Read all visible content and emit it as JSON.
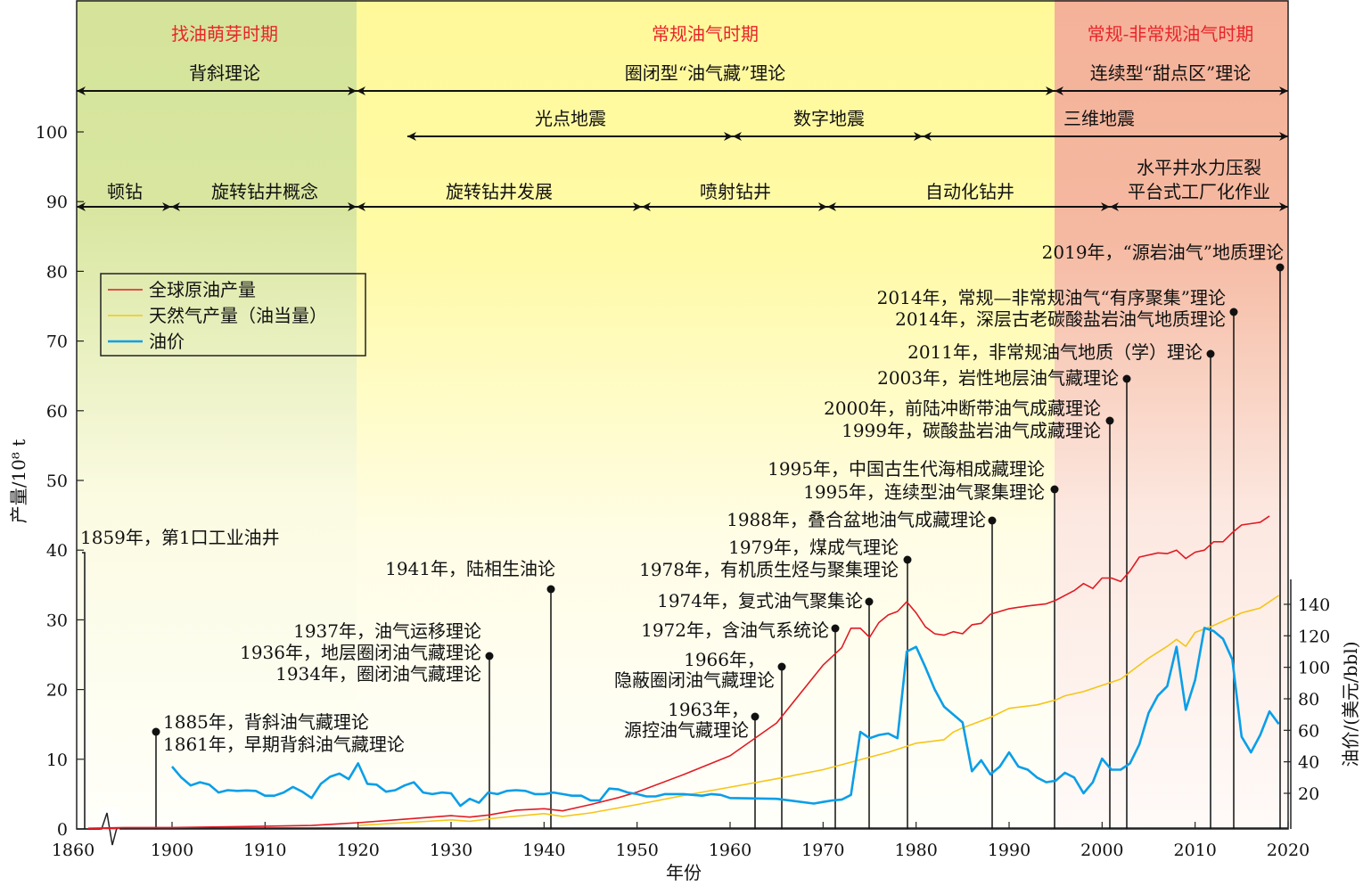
{
  "chart_data": {
    "type": "line",
    "xlabel": "年份",
    "ylabel": "产量/10⁸ t",
    "y2label": "油价/(美元/bbl)",
    "xlim": [
      1860,
      2020
    ],
    "ylim": [
      0,
      100
    ],
    "y2lim": [
      20,
      140
    ],
    "axis_break": "1860–1900",
    "x_ticks": [
      1860,
      1900,
      1910,
      1920,
      1930,
      1940,
      1950,
      1960,
      1970,
      1980,
      1990,
      2000,
      2010,
      2020
    ],
    "y_ticks": [
      0,
      10,
      20,
      30,
      40,
      50,
      60,
      70,
      80,
      90,
      100
    ],
    "y2_ticks": [
      20,
      40,
      60,
      80,
      100,
      120,
      140
    ],
    "legend_position": "top-left",
    "series": [
      {
        "name": "全球原油产量",
        "color": "#e01b24",
        "axis": "left",
        "x": [
          1865,
          1880,
          1900,
          1910,
          1915,
          1920,
          1925,
          1930,
          1932,
          1934,
          1937,
          1940,
          1942,
          1945,
          1948,
          1950,
          1955,
          1960,
          1965,
          1970,
          1972,
          1973,
          1974,
          1975,
          1976,
          1977,
          1978,
          1979,
          1980,
          1981,
          1982,
          1983,
          1984,
          1985,
          1986,
          1987,
          1988,
          1990,
          1992,
          1994,
          1995,
          1997,
          1998,
          1999,
          2000,
          2001,
          2002,
          2003,
          2004,
          2006,
          2007,
          2008,
          2009,
          2010,
          2011,
          2012,
          2013,
          2014,
          2015,
          2017,
          2018
        ],
        "y": [
          0.1,
          0.2,
          0.2,
          0.4,
          0.5,
          0.9,
          1.4,
          1.9,
          1.7,
          2.0,
          2.7,
          2.9,
          2.6,
          3.5,
          4.5,
          5.3,
          7.8,
          10.5,
          15.2,
          23.5,
          26,
          28.8,
          28.8,
          27.5,
          29.6,
          30.7,
          31.2,
          32.6,
          31,
          29,
          28,
          27.8,
          28.3,
          28,
          29.3,
          29.5,
          30.8,
          31.6,
          32,
          32.3,
          32.8,
          34.2,
          35.2,
          34.5,
          36,
          36,
          35.5,
          37,
          39,
          39.6,
          39.5,
          40,
          38.8,
          39.7,
          40,
          41.2,
          41.2,
          42.5,
          43.6,
          44,
          44.9
        ]
      },
      {
        "name": "天然气产量（油当量）",
        "color": "#f5c518",
        "axis": "left",
        "x": [
          1920,
          1925,
          1930,
          1932,
          1935,
          1940,
          1942,
          1945,
          1950,
          1955,
          1960,
          1965,
          1970,
          1975,
          1977,
          1980,
          1983,
          1984,
          1985,
          1988,
          1990,
          1993,
          1995,
          1996,
          1998,
          2000,
          2002,
          2005,
          2007,
          2008,
          2009,
          2010,
          2012,
          2015,
          2017,
          2019
        ],
        "y": [
          0.5,
          0.9,
          1.3,
          1.1,
          1.6,
          2.2,
          1.8,
          2.3,
          3.5,
          4.8,
          6,
          7.2,
          8.5,
          10.3,
          11,
          12.3,
          12.8,
          13.9,
          14.5,
          16,
          17.3,
          17.8,
          18.5,
          19.1,
          19.7,
          20.6,
          21.5,
          24.5,
          26.2,
          27.2,
          26.2,
          28.2,
          29.2,
          31,
          31.7,
          33.5
        ]
      },
      {
        "name": "油价",
        "color": "#0a9ee8",
        "axis": "right",
        "x": [
          1900,
          1901,
          1902,
          1903,
          1904,
          1905,
          1906,
          1907,
          1908,
          1909,
          1910,
          1911,
          1912,
          1913,
          1914,
          1915,
          1916,
          1917,
          1918,
          1919,
          1920,
          1921,
          1922,
          1923,
          1924,
          1925,
          1926,
          1927,
          1928,
          1929,
          1930,
          1931,
          1932,
          1933,
          1934,
          1935,
          1936,
          1937,
          1938,
          1939,
          1940,
          1941,
          1942,
          1943,
          1944,
          1945,
          1946,
          1947,
          1948,
          1949,
          1950,
          1951,
          1952,
          1953,
          1955,
          1957,
          1958,
          1959,
          1960,
          1965,
          1969,
          1970,
          1971,
          1972,
          1973,
          1974,
          1975,
          1976,
          1977,
          1978,
          1979,
          1980,
          1981,
          1982,
          1983,
          1984,
          1985,
          1986,
          1987,
          1988,
          1989,
          1990,
          1991,
          1992,
          1993,
          1994,
          1995,
          1996,
          1997,
          1998,
          1999,
          2000,
          2001,
          2002,
          2003,
          2004,
          2005,
          2006,
          2007,
          2008,
          2009,
          2010,
          2011,
          2012,
          2013,
          2014,
          2015,
          2016,
          2017,
          2018,
          2019
        ],
        "y": [
          37,
          30,
          25,
          27,
          25.5,
          20.5,
          22,
          21.5,
          21.8,
          21.5,
          18.5,
          18.5,
          20.5,
          24,
          21,
          17,
          26,
          30.5,
          32.5,
          29,
          39,
          26,
          25.5,
          21,
          22,
          25,
          27,
          20.5,
          19.5,
          20.5,
          20,
          12,
          16.5,
          14,
          20.5,
          19.5,
          21.5,
          22,
          21.5,
          19.5,
          19.5,
          20.5,
          19.5,
          18.5,
          18.5,
          15.5,
          15.5,
          23,
          22.5,
          20.5,
          19.5,
          18,
          18,
          19.5,
          19.5,
          18.5,
          19.5,
          19,
          17,
          16.5,
          13.5,
          14.5,
          15.5,
          16,
          19,
          59,
          55,
          57,
          58,
          55,
          110,
          113,
          100,
          86,
          75,
          70,
          65,
          34,
          41,
          32,
          37,
          46,
          37,
          35,
          30,
          27,
          28,
          33,
          30,
          20,
          27,
          42,
          35,
          35,
          39,
          51,
          71,
          82,
          88,
          113,
          73,
          92,
          125,
          123,
          118,
          105,
          56,
          46,
          57,
          72,
          64
        ]
      }
    ],
    "periods": [
      {
        "label": "找油萌芽时期",
        "color": "#d5e49a"
      },
      {
        "label": "常规油气时期",
        "color": "#fff99a"
      },
      {
        "label": "常规-非常规油气时期",
        "color": "#f4b299"
      }
    ],
    "theory_row": [
      "背斜理论",
      "圈闭型“油气藏”理论",
      "连续型“甜点区”理论"
    ],
    "seismic_row": [
      "光点地震",
      "数字地震",
      "三维地震"
    ],
    "drilling_row": [
      "顿钻",
      "旋转钻井概念",
      "旋转钻井发展",
      "喷射钻井",
      "自动化钻井",
      "水平井水力压裂",
      "平台式工厂化作业"
    ],
    "annotations": [
      [
        "1859年，第1口工业油井"
      ],
      [
        "1885年，背斜油气藏理论",
        "1861年，早期背斜油气藏理论"
      ],
      [
        "1937年，油气运移理论",
        "1936年，地层圈闭油气藏理论",
        "1934年，圈闭油气藏理论"
      ],
      [
        "1941年，陆相生油论"
      ],
      [
        "1963年，",
        "源控油气藏理论"
      ],
      [
        "1966年，",
        "隐蔽圈闭油气藏理论"
      ],
      [
        "1972年，含油气系统论"
      ],
      [
        "1974年，复式油气聚集论"
      ],
      [
        "1979年，煤成气理论",
        "1978年，有机质生烃与聚集理论"
      ],
      [
        "1988年，叠合盆地油气成藏理论"
      ],
      [
        "1995年，中国古生代海相成藏理论",
        "1995年，连续型油气聚集理论"
      ],
      [
        "2000年，前陆冲断带油气成藏理论",
        "1999年，碳酸盐岩油气成藏理论"
      ],
      [
        "2003年，岩性地层油气藏理论"
      ],
      [
        "2011年，非常规油气地质（学）理论"
      ],
      [
        "2014年，常规—非常规油气“有序聚集”理论",
        "2014年，深层古老碳酸盐岩油气地质理论"
      ],
      [
        "2019年，“源岩油气”地质理论"
      ]
    ]
  }
}
